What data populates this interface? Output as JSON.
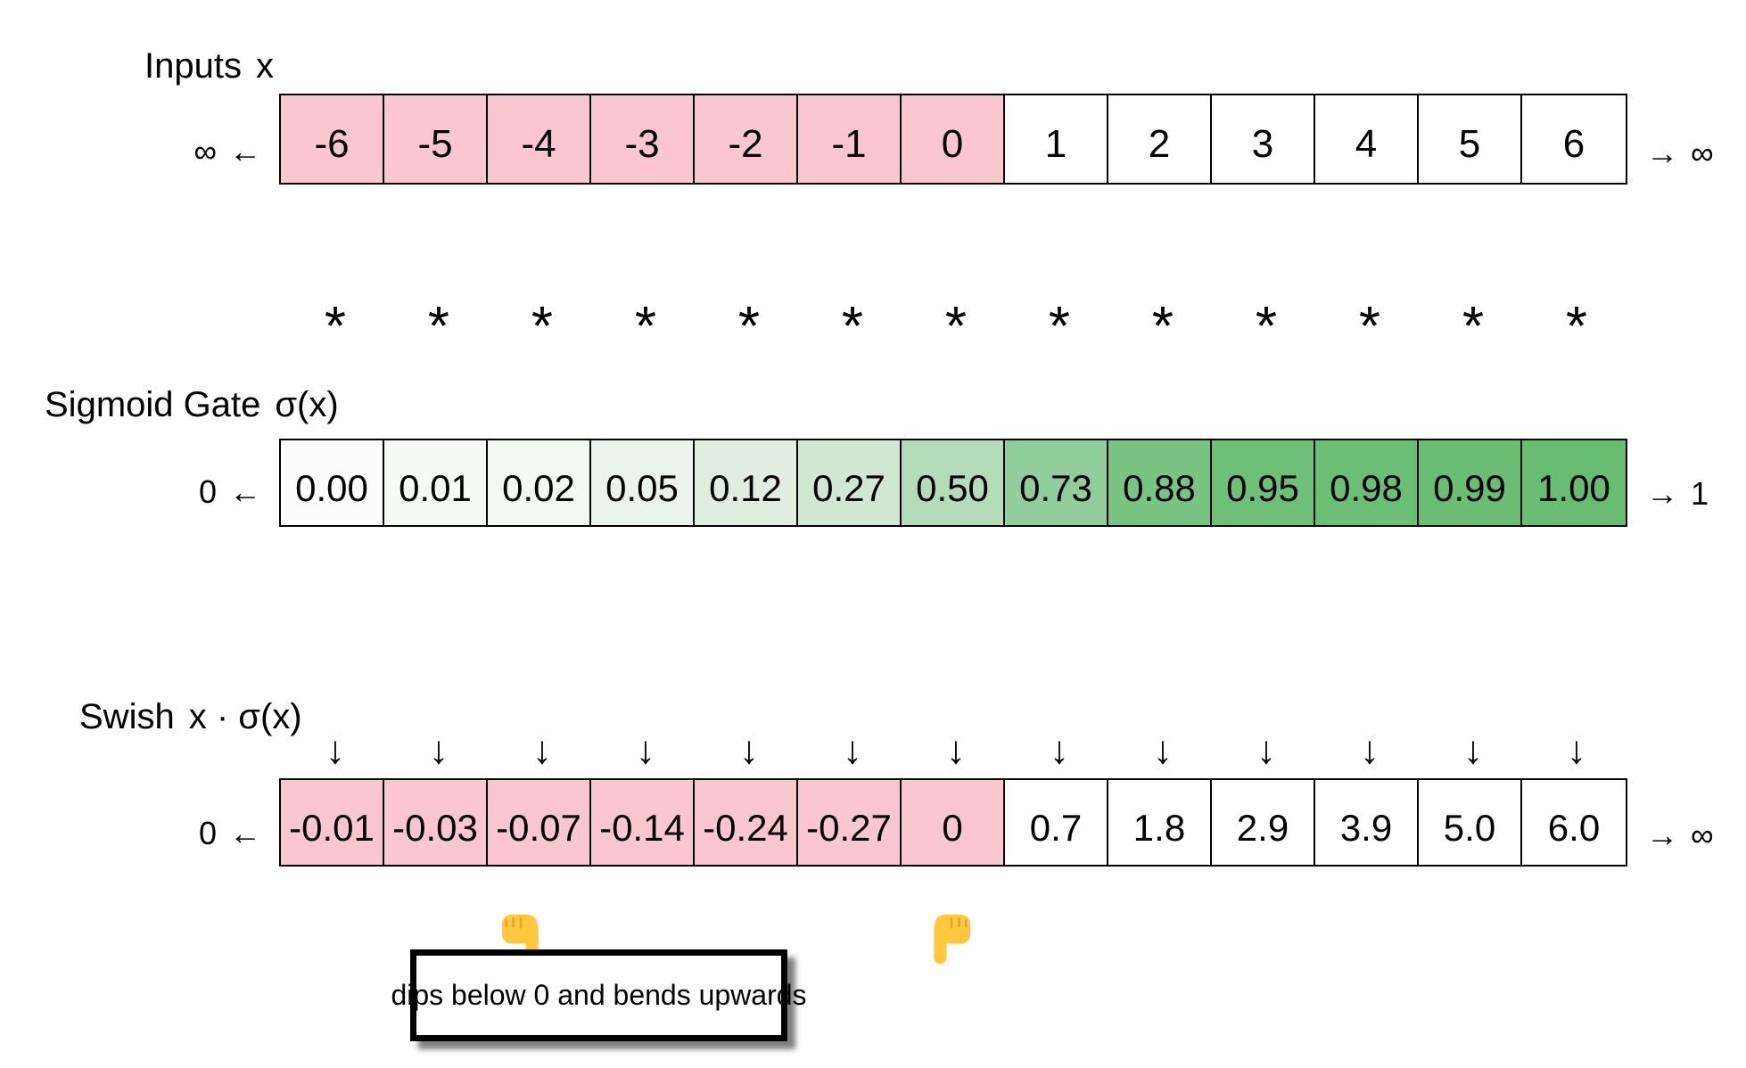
{
  "figure": {
    "rows": [
      {
        "id": "inputs",
        "title": "Inputs",
        "formula": "x",
        "left_marker": "∞ ←",
        "right_marker": "→ ∞",
        "cells": [
          {
            "value": "-6",
            "fill": "#FAC7D0"
          },
          {
            "value": "-5",
            "fill": "#FAC7D0"
          },
          {
            "value": "-4",
            "fill": "#FAC7D0"
          },
          {
            "value": "-3",
            "fill": "#FAC7D0"
          },
          {
            "value": "-2",
            "fill": "#FAC7D0"
          },
          {
            "value": "-1",
            "fill": "#FAC7D0"
          },
          {
            "value": "0",
            "fill": "#FAC7D0"
          },
          {
            "value": "1",
            "fill": "#FFFFFF"
          },
          {
            "value": "2",
            "fill": "#FFFFFF"
          },
          {
            "value": "3",
            "fill": "#FFFFFF"
          },
          {
            "value": "4",
            "fill": "#FFFFFF"
          },
          {
            "value": "5",
            "fill": "#FFFFFF"
          },
          {
            "value": "6",
            "fill": "#FFFFFF"
          }
        ]
      },
      {
        "id": "sigmoid-gate",
        "title": "Sigmoid Gate",
        "formula": "σ(x)",
        "left_marker": "0 ←",
        "right_marker": "→ 1",
        "cells": [
          {
            "value": "0.00",
            "fill": "#FBFCFB"
          },
          {
            "value": "0.01",
            "fill": "#F8FAF8"
          },
          {
            "value": "0.02",
            "fill": "#F3F8F3"
          },
          {
            "value": "0.05",
            "fill": "#EBF4EC"
          },
          {
            "value": "0.12",
            "fill": "#DFEEE0"
          },
          {
            "value": "0.27",
            "fill": "#D0E8D2"
          },
          {
            "value": "0.50",
            "fill": "#B5DCBA"
          },
          {
            "value": "0.73",
            "fill": "#92CE9B"
          },
          {
            "value": "0.88",
            "fill": "#79C383"
          },
          {
            "value": "0.95",
            "fill": "#6EC078"
          },
          {
            "value": "0.98",
            "fill": "#6BBE75"
          },
          {
            "value": "0.99",
            "fill": "#6ABE74"
          },
          {
            "value": "1.00",
            "fill": "#69BD73"
          }
        ]
      },
      {
        "id": "swish",
        "title": "Swish",
        "formula": "x · σ(x)",
        "left_marker": "0 ←",
        "right_marker": "→ ∞",
        "cells": [
          {
            "value": "-0.01",
            "fill": "#FAC7D0"
          },
          {
            "value": "-0.03",
            "fill": "#FAC7D0"
          },
          {
            "value": "-0.07",
            "fill": "#FAC7D0"
          },
          {
            "value": "-0.14",
            "fill": "#FAC7D0"
          },
          {
            "value": "-0.24",
            "fill": "#FAC7D0"
          },
          {
            "value": "-0.27",
            "fill": "#FAC7D0"
          },
          {
            "value": "0",
            "fill": "#FAC7D0"
          },
          {
            "value": "0.7",
            "fill": "#FFFFFF"
          },
          {
            "value": "1.8",
            "fill": "#FFFFFF"
          },
          {
            "value": "2.9",
            "fill": "#FFFFFF"
          },
          {
            "value": "3.9",
            "fill": "#FFFFFF"
          },
          {
            "value": "5.0",
            "fill": "#FFFFFF"
          },
          {
            "value": "6.0",
            "fill": "#FFFFFF"
          }
        ]
      }
    ],
    "operator_rows": {
      "multiply_symbol": "*",
      "maps_to_symbol": "↓",
      "count": 13
    },
    "annotation": {
      "text": "dips below 0 and bends upwards",
      "pointer_icon": "backhand-index-pointing-down",
      "pointer_fill": "#FFC83D",
      "pointer_shade": "#E0A32E"
    },
    "colors": {
      "negative_cell": "#FAC7D0",
      "positive_cell": "#FFFFFF",
      "border": "#000000"
    }
  }
}
